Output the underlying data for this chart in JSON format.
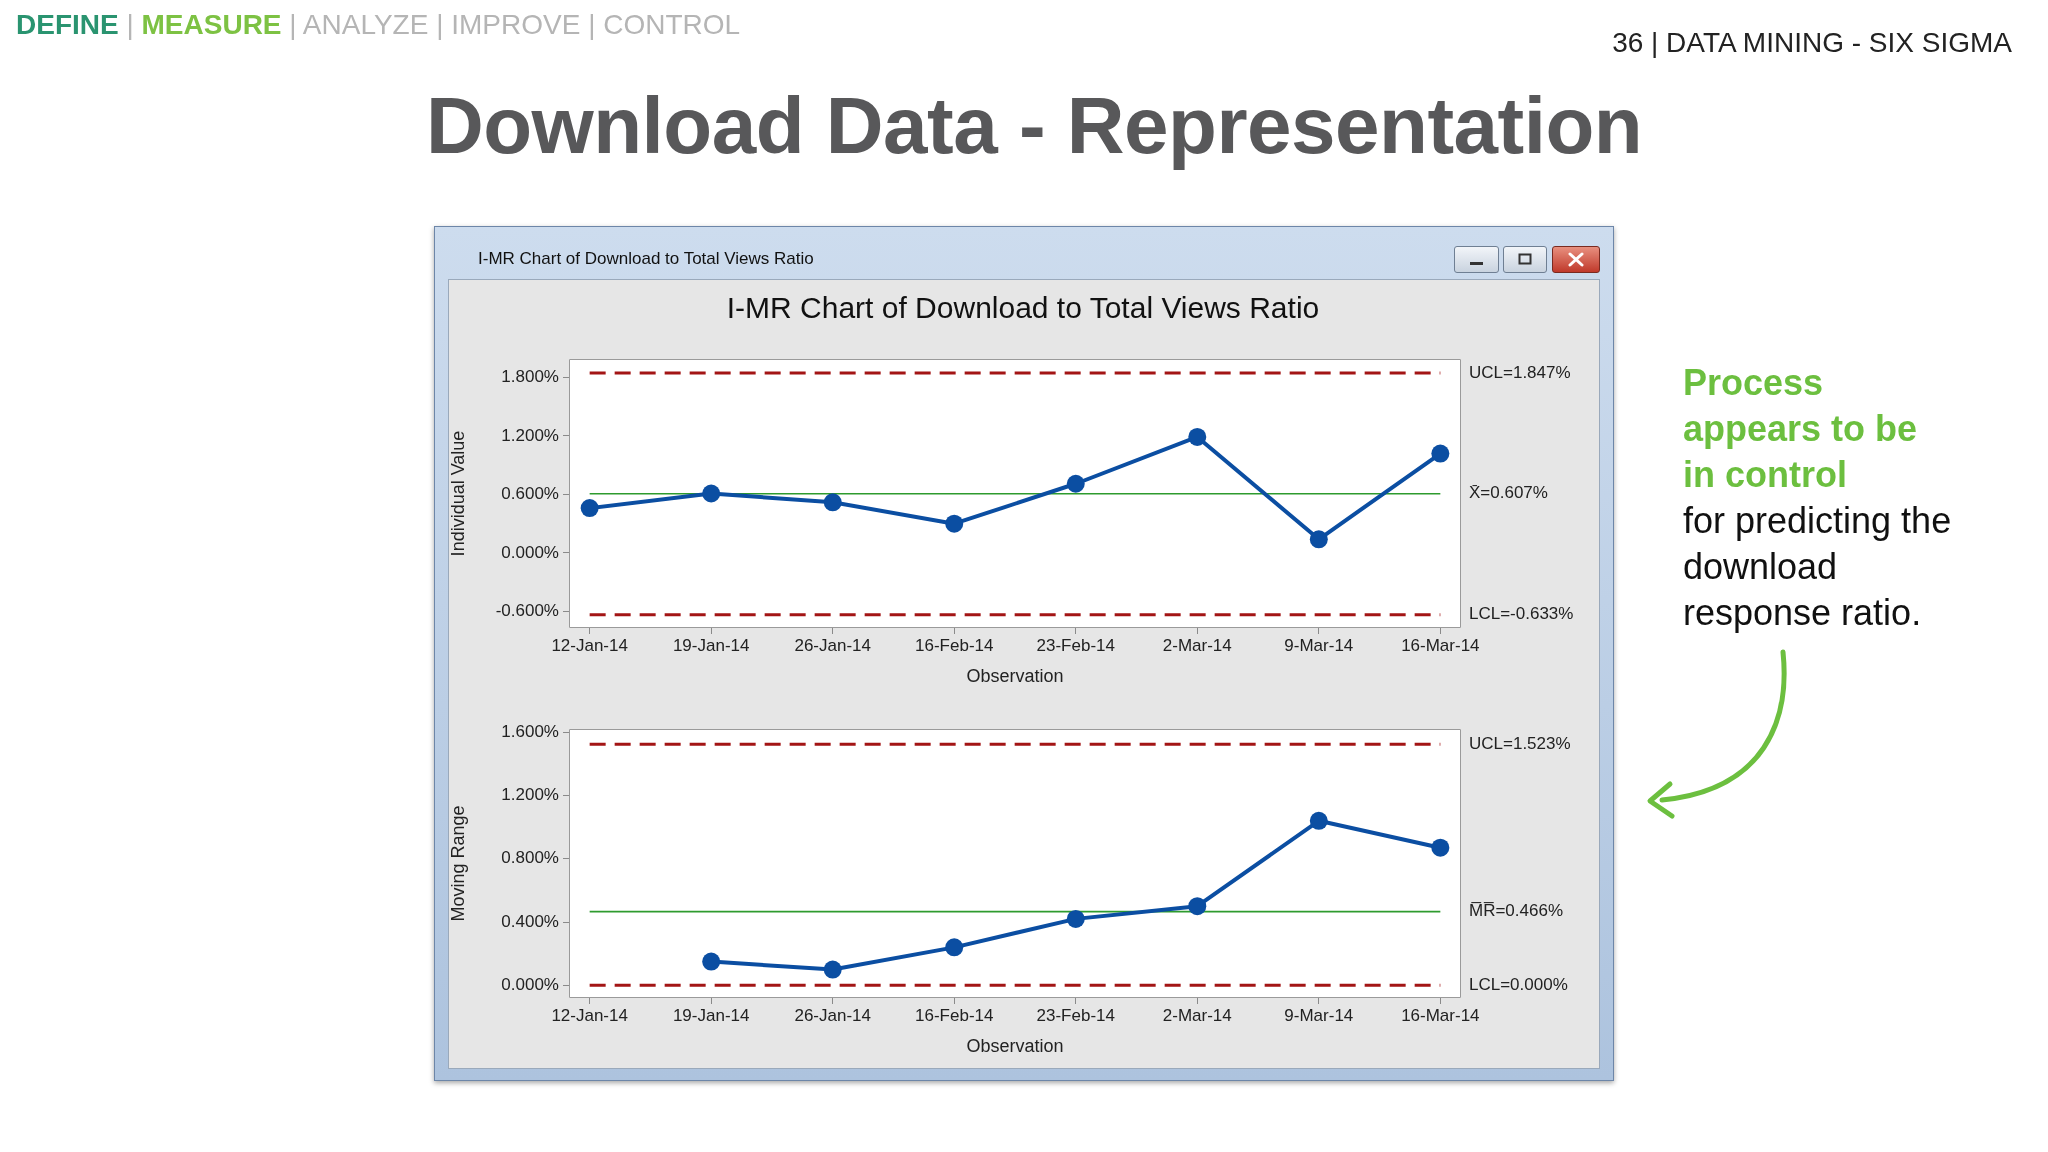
{
  "chart_data": [
    {
      "type": "other",
      "title": "Download Data - Representation",
      "annotations": [
        "DEFINE | MEASURE | ANALYZE | IMPROVE | CONTROL",
        "36 | DATA MINING - SIX SIGMA",
        "I-MR Chart of Download to Total Views Ratio",
        "Process appears to be in control",
        "for predicting the download response ratio."
      ]
    },
    {
      "type": "line",
      "title": "I-MR Chart of Download to Total Views Ratio",
      "xlabel": "Observation",
      "ylabel": "Individual Value",
      "categories": [
        "12-Jan-14",
        "19-Jan-14",
        "26-Jan-14",
        "16-Feb-14",
        "23-Feb-14",
        "2-Mar-14",
        "9-Mar-14",
        "16-Mar-14"
      ],
      "series": [
        {
          "color": "#0b4ea2",
          "values": [
            0.46,
            0.61,
            0.52,
            0.3,
            0.71,
            1.19,
            0.14,
            1.02
          ]
        }
      ],
      "ylim": [
        -0.77,
        1.99
      ],
      "yticks": [
        {
          "value": -0.6,
          "label": "-0.600%"
        },
        {
          "value": 0,
          "label": "0.000%"
        },
        {
          "value": 0.6,
          "label": "0.600%"
        },
        {
          "value": 1.2,
          "label": "1.200%"
        },
        {
          "value": 1.8,
          "label": "1.800%"
        }
      ],
      "ref_lines": [
        {
          "axis": "y",
          "value": 1.847,
          "label": "UCL=1.847%",
          "color": "#a31515",
          "line_style": "dashed"
        },
        {
          "axis": "y",
          "value": 0.607,
          "label": "X̄=0.607%",
          "color": "#2e9b2e",
          "line_style": "solid"
        },
        {
          "axis": "y",
          "value": -0.633,
          "label": "LCL=-0.633%",
          "color": "#a31515",
          "line_style": "dashed"
        }
      ],
      "marker": "circle",
      "line_style": "solid"
    },
    {
      "type": "line",
      "xlabel": "Observation",
      "ylabel": "Moving Range",
      "categories": [
        "12-Jan-14",
        "19-Jan-14",
        "26-Jan-14",
        "16-Feb-14",
        "23-Feb-14",
        "2-Mar-14",
        "9-Mar-14",
        "16-Mar-14"
      ],
      "series": [
        {
          "color": "#0b4ea2",
          "values": [
            null,
            0.15,
            0.1,
            0.24,
            0.42,
            0.5,
            1.04,
            0.87
          ]
        }
      ],
      "ylim": [
        -0.08,
        1.62
      ],
      "yticks": [
        {
          "value": 0,
          "label": "0.000%"
        },
        {
          "value": 0.4,
          "label": "0.400%"
        },
        {
          "value": 0.8,
          "label": "0.800%"
        },
        {
          "value": 1.2,
          "label": "1.200%"
        },
        {
          "value": 1.6,
          "label": "1.600%"
        }
      ],
      "ref_lines": [
        {
          "axis": "y",
          "value": 1.523,
          "label": "UCL=1.523%",
          "color": "#a31515",
          "line_style": "dashed"
        },
        {
          "axis": "y",
          "value": 0.466,
          "label": "M̅R̅=0.466%",
          "color": "#2e9b2e",
          "line_style": "solid"
        },
        {
          "axis": "y",
          "value": 0,
          "label": "LCL=0.000%",
          "color": "#a31515",
          "line_style": "dashed"
        }
      ],
      "marker": "circle",
      "line_style": "solid"
    }
  ]
}
